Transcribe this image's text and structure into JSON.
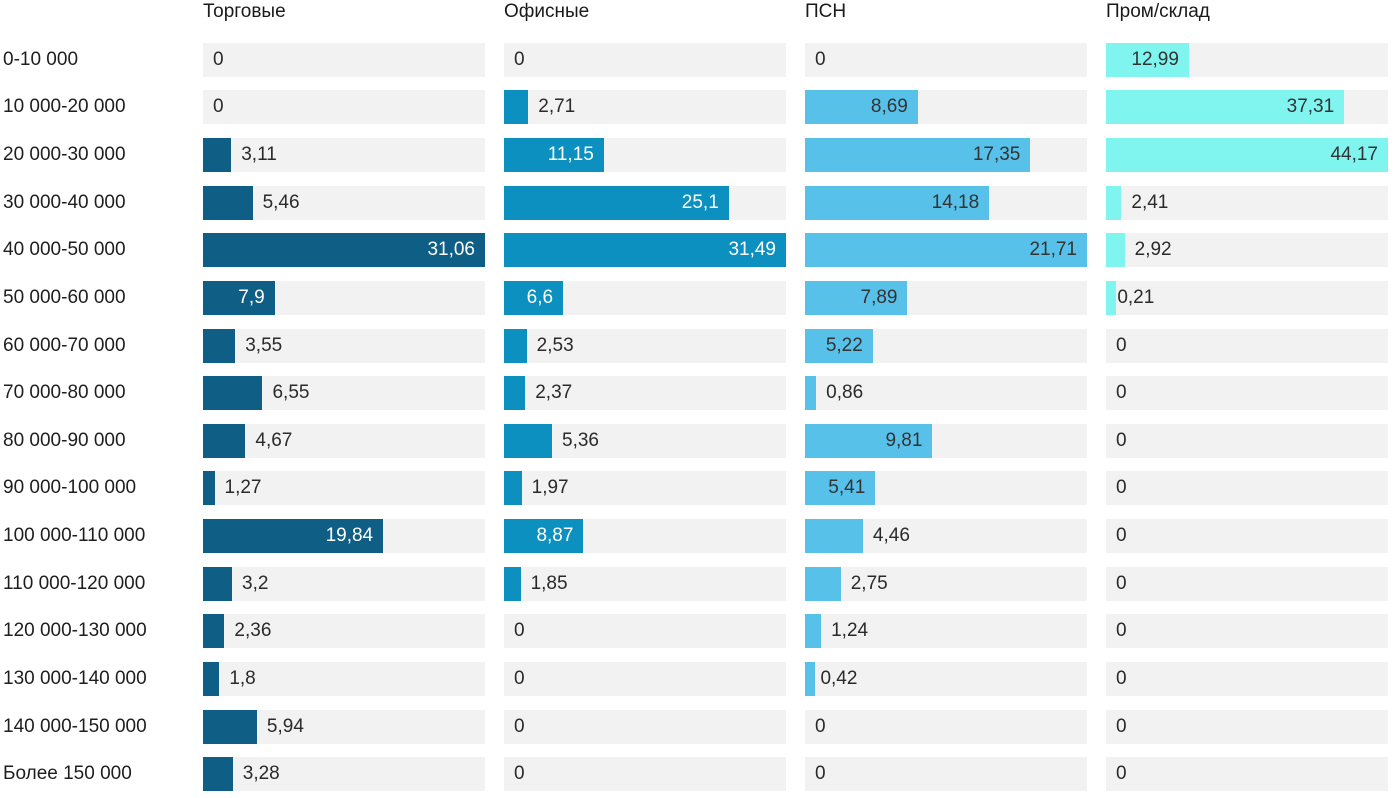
{
  "chart_data": {
    "type": "bar",
    "orientation": "horizontal",
    "layout": "small-multiples-4-columns",
    "scale": "per-column-max",
    "grid": false,
    "legend": false,
    "track_color": "#f2f2f2",
    "outside_label_color": "#2a2a2a",
    "row_label_color": "#1e1e1e",
    "header_color": "#1a1a1a",
    "categories": [
      "0-10 000",
      "10 000-20 000",
      "20 000-30 000",
      "30 000-40 000",
      "40 000-50 000",
      "50 000-60 000",
      "60 000-70 000",
      "70 000-80 000",
      "80 000-90 000",
      "90 000-100 000",
      "100 000-110 000",
      "110 000-120 000",
      "120 000-130 000",
      "130 000-140 000",
      "140 000-150 000",
      "Более 150 000"
    ],
    "series": [
      {
        "name": "Торговые",
        "color": "#0f5e86",
        "inside_label_color": "#ffffff",
        "values": [
          0,
          0,
          3.11,
          5.46,
          31.06,
          7.9,
          3.55,
          6.55,
          4.67,
          1.27,
          19.84,
          3.2,
          2.36,
          1.8,
          5.94,
          3.28
        ],
        "labels": [
          "0",
          "0",
          "3,11",
          "5,46",
          "31,06",
          "7,9",
          "3,55",
          "6,55",
          "4,67",
          "1,27",
          "19,84",
          "3,2",
          "2,36",
          "1,8",
          "5,94",
          "3,28"
        ]
      },
      {
        "name": "Офисные",
        "color": "#0c90bf",
        "inside_label_color": "#ffffff",
        "values": [
          0,
          2.71,
          11.15,
          25.1,
          31.49,
          6.6,
          2.53,
          2.37,
          5.36,
          1.97,
          8.87,
          1.85,
          0,
          0,
          0,
          0
        ],
        "labels": [
          "0",
          "2,71",
          "11,15",
          "25,1",
          "31,49",
          "6,6",
          "2,53",
          "2,37",
          "5,36",
          "1,97",
          "8,87",
          "1,85",
          "0",
          "0",
          "0",
          "0"
        ]
      },
      {
        "name": "ПСН",
        "color": "#57c1ea",
        "inside_label_color": "#333333",
        "values": [
          0,
          8.69,
          17.35,
          14.18,
          21.71,
          7.89,
          5.22,
          0.86,
          9.81,
          5.41,
          4.46,
          2.75,
          1.24,
          0.42,
          0,
          0
        ],
        "labels": [
          "0",
          "8,69",
          "17,35",
          "14,18",
          "21,71",
          "7,89",
          "5,22",
          "0,86",
          "9,81",
          "5,41",
          "4,46",
          "2,75",
          "1,24",
          "0,42",
          "0",
          "0"
        ]
      },
      {
        "name": "Пром/склад",
        "color": "#80f4ee",
        "inside_label_color": "#333333",
        "values": [
          12.99,
          37.31,
          44.17,
          2.41,
          2.92,
          0.21,
          0,
          0,
          0,
          0,
          0,
          0,
          0,
          0,
          0,
          0
        ],
        "labels": [
          "12,99",
          "37,31",
          "44,17",
          "2,41",
          "2,92",
          "0,21",
          "0",
          "0",
          "0",
          "0",
          "0",
          "0",
          "0",
          "0",
          "0",
          "0"
        ]
      }
    ]
  }
}
